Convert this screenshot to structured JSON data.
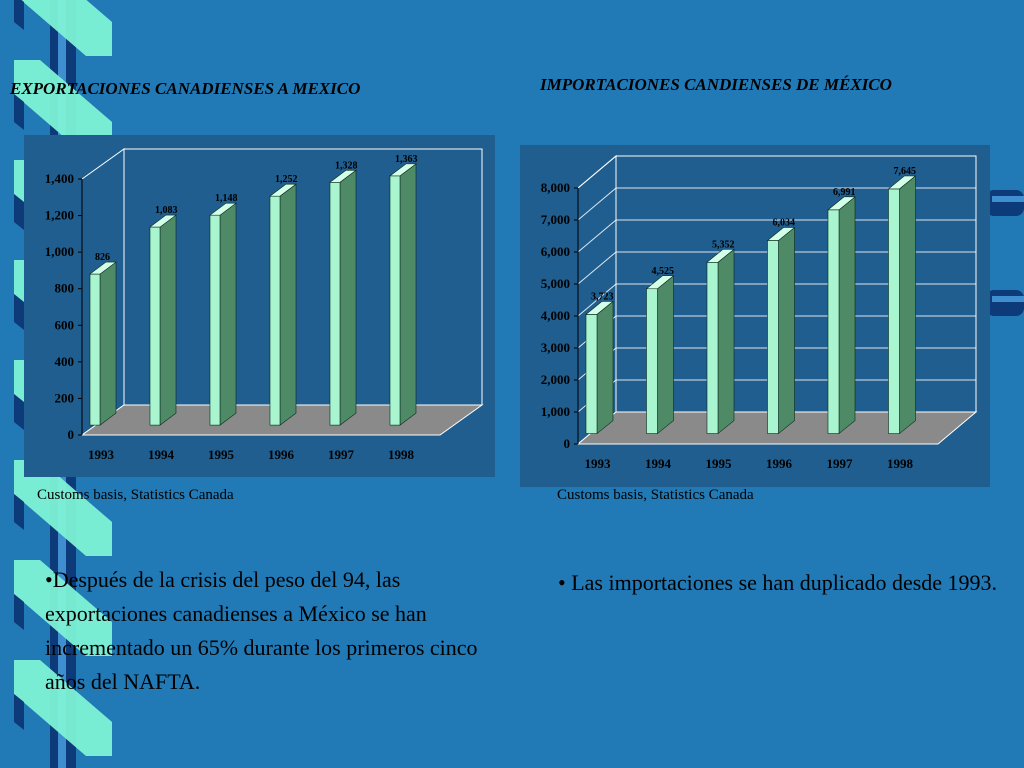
{
  "colors": {
    "background": "#2179b5",
    "chart_panel": "#1f5e8e",
    "bar_front": "#a9f5cf",
    "bar_side": "#4f8a66",
    "bar_top": "#d3ffe8",
    "floor": "#8a8a8a",
    "decoration_light": "#7ef2d6",
    "decoration_dark": "#0d3a78"
  },
  "left": {
    "title": "EXPORTACIONES CANADIENSES A MEXICO",
    "source": "Customs basis, Statistics Canada",
    "note": "•Después de la crisis del peso del 94, las exportaciones canadienses a México se han incrementado un 65% durante los primeros cinco años del NAFTA."
  },
  "right": {
    "title": "IMPORTACIONES CANDIENSES DE MÉXICO",
    "source": "Customs basis, Statistics Canada",
    "note": "• Las importaciones se han duplicado desde 1993."
  },
  "chart_data": [
    {
      "type": "bar",
      "title": "EXPORTACIONES CANADIENSES A MEXICO",
      "categories": [
        "1993",
        "1994",
        "1995",
        "1996",
        "1997",
        "1998"
      ],
      "values": [
        826,
        1083,
        1148,
        1252,
        1328,
        1363
      ],
      "value_labels": [
        "826",
        "1,083",
        "1,148",
        "1,252",
        "1,328",
        "1,363"
      ],
      "yticks": [
        0,
        200,
        400,
        600,
        800,
        1000,
        1200,
        1400
      ],
      "ytick_labels": [
        "0",
        "200",
        "400",
        "600",
        "800",
        "1,000",
        "1,200",
        "1,400"
      ],
      "ylim": [
        0,
        1400
      ],
      "style": "3d",
      "grid": false,
      "legend": "none"
    },
    {
      "type": "bar",
      "title": "IMPORTACIONES CANDIENSES DE MÉXICO",
      "categories": [
        "1993",
        "1994",
        "1995",
        "1996",
        "1997",
        "1998"
      ],
      "values": [
        3723,
        4525,
        5352,
        6034,
        6991,
        7645
      ],
      "value_labels": [
        "3,723",
        "4,525",
        "5,352",
        "6,034",
        "6,991",
        "7,645"
      ],
      "yticks": [
        0,
        1000,
        2000,
        3000,
        4000,
        5000,
        6000,
        7000,
        8000
      ],
      "ytick_labels": [
        "0",
        "1,000",
        "2,000",
        "3,000",
        "4,000",
        "5,000",
        "6,000",
        "7,000",
        "8,000"
      ],
      "ylim": [
        0,
        8000
      ],
      "style": "3d",
      "grid": true,
      "legend": "none"
    }
  ]
}
